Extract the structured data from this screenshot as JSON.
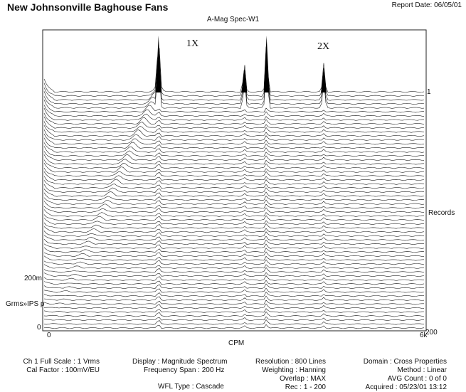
{
  "header": {
    "title": "New Johnsonville Baghouse Fans",
    "report_date": "Report Date: 06/05/01"
  },
  "chart_data": {
    "type": "area",
    "title": "A-Mag Spec-W1",
    "xlabel": "CPM",
    "ylabel": "Grms»IPS p",
    "xlim": [
      0,
      6000
    ],
    "x_tick_labels": [
      "0",
      "6k"
    ],
    "y_tick_labels": [
      "0",
      "200m"
    ],
    "records_axis": {
      "label": "Records",
      "range": [
        1,
        200
      ],
      "tick_labels": [
        "1",
        "200"
      ]
    },
    "annotations": [
      {
        "text": "1X",
        "x": 1800
      },
      {
        "text": "2X",
        "x": 3500
      }
    ],
    "peaks_cpm": [
      1800,
      3150,
      3500,
      4400
    ],
    "record_count": 200
  },
  "footer": {
    "col1": [
      "Ch 1 Full Scale : 1 Vrms",
      "Cal Factor : 100mV/EU"
    ],
    "col2": [
      "Display : Magnitude Spectrum",
      "Frequency Span : 200 Hz",
      "WFL Type : Cascade"
    ],
    "col3": [
      "Resolution : 800 Lines",
      "Weighting : Hanning",
      "Overlap : MAX",
      "Rec : 1 - 200"
    ],
    "col4": [
      "Domain : Cross Properties",
      "Method : Linear",
      "AVG Count : 0 of 0",
      "Acquired : 05/23/01 13:12"
    ]
  }
}
